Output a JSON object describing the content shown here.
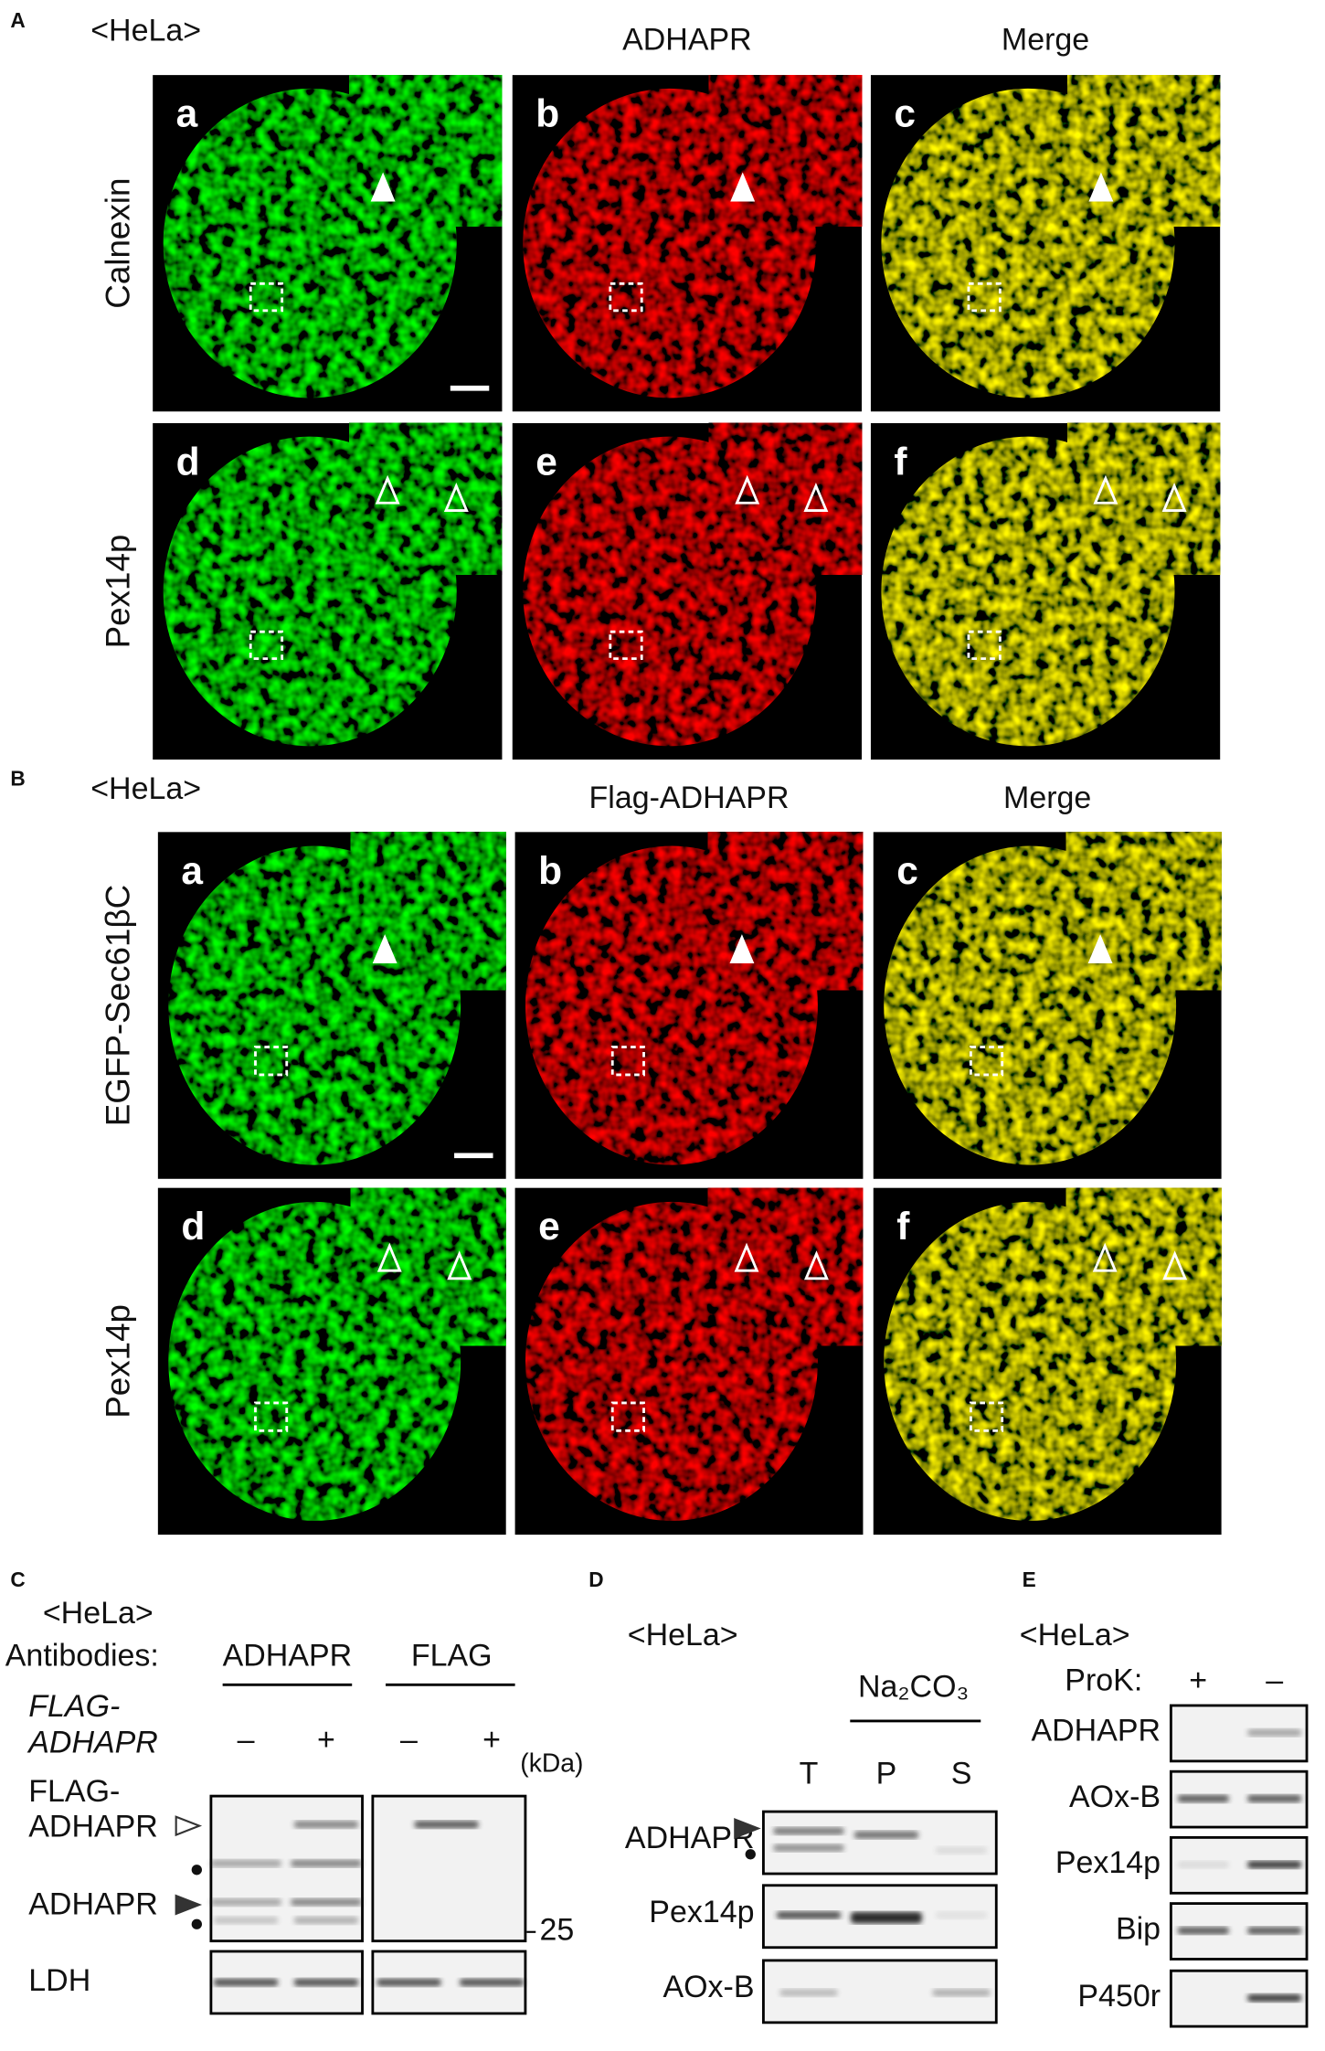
{
  "panel_A": {
    "label": "A",
    "cell_line": "<HeLa>",
    "columns": [
      "ADHAPR",
      "Merge"
    ],
    "rows": [
      "Calnexin",
      "Pex14p"
    ],
    "subpanels": [
      "a",
      "b",
      "c",
      "d",
      "e",
      "f"
    ]
  },
  "panel_B": {
    "label": "B",
    "cell_line": "<HeLa>",
    "columns": [
      "Flag-ADHAPR",
      "Merge"
    ],
    "rows": [
      "EGFP-Sec61βC",
      "Pex14p"
    ],
    "subpanels": [
      "a",
      "b",
      "c",
      "d",
      "e",
      "f"
    ]
  },
  "panel_C": {
    "label": "C",
    "cell_line": "<HeLa>",
    "antibodies_label": "Antibodies:",
    "antibodies": [
      "ADHAPR",
      "FLAG"
    ],
    "construct": [
      "FLAG-",
      "ADHAPR"
    ],
    "lanes": [
      "–",
      "+",
      "–",
      "+"
    ],
    "unit": "(kDa)",
    "bands": [
      [
        "FLAG-",
        "ADHAPR"
      ],
      "ADHAPR"
    ],
    "marker": "25",
    "loading": "LDH"
  },
  "panel_D": {
    "label": "D",
    "cell_line": "<HeLa>",
    "treatment": "Na₂CO₃",
    "lanes": [
      "T",
      "P",
      "S"
    ],
    "blots": [
      "ADHAPR",
      "Pex14p",
      "AOx-B"
    ]
  },
  "panel_E": {
    "label": "E",
    "cell_line": "<HeLa>",
    "treatment": "ProK:",
    "lanes": [
      "+",
      "–"
    ],
    "blots": [
      "ADHAPR",
      "AOx-B",
      "Pex14p",
      "Bip",
      "P450r"
    ]
  }
}
